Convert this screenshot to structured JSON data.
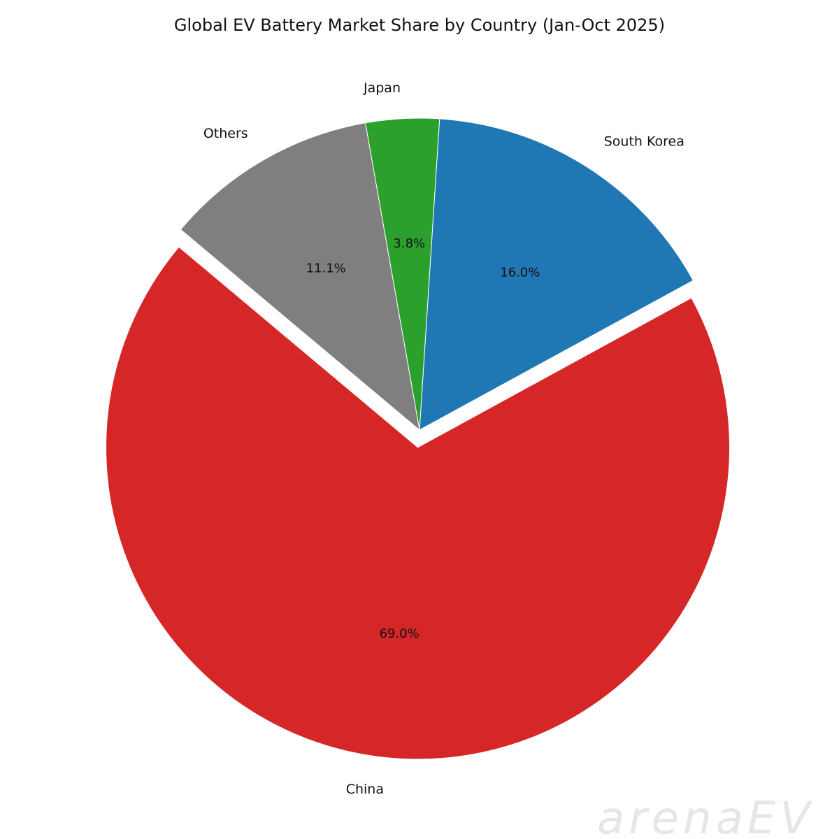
{
  "chart_data": {
    "type": "pie",
    "title": "Global EV Battery Market Share by Country (Jan-Oct 2025)",
    "categories": [
      "China",
      "South Korea",
      "Japan",
      "Others"
    ],
    "values": [
      69.0,
      16.0,
      3.8,
      11.1
    ],
    "value_labels": [
      "69.0%",
      "16.0%",
      "3.8%",
      "11.1%"
    ],
    "colors": [
      "#d62728",
      "#1f77b4",
      "#2ca02c",
      "#7f7f7f"
    ],
    "exploded": [
      true,
      false,
      false,
      false
    ],
    "start_angle_deg": 140,
    "direction": "counterclockwise",
    "legend": "none"
  },
  "watermark": "arenaEV"
}
